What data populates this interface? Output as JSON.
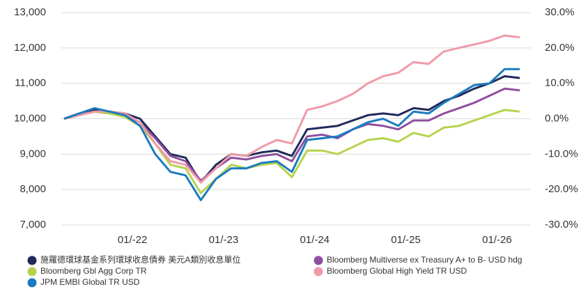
{
  "chart_data": {
    "type": "line",
    "x": [
      "2021-04",
      "2021-06",
      "2021-08",
      "2021-10",
      "2021-12",
      "2022-02",
      "2022-04",
      "2022-06",
      "2022-08",
      "2022-10",
      "2022-12",
      "2023-02",
      "2023-04",
      "2023-06",
      "2023-08",
      "2023-10",
      "2023-12",
      "2024-02",
      "2024-04",
      "2024-06",
      "2024-08",
      "2024-10",
      "2024-12",
      "2025-02",
      "2025-04",
      "2025-06",
      "2025-08",
      "2025-10",
      "2025-12",
      "2026-02",
      "2026-04"
    ],
    "xlim": [
      "2021-04",
      "2026-05"
    ],
    "xticks": [
      {
        "value": "2022-01",
        "label": "01/-22"
      },
      {
        "value": "2023-01",
        "label": "01/-23"
      },
      {
        "value": "2024-01",
        "label": "01/-24"
      },
      {
        "value": "2025-01",
        "label": "01/-25"
      },
      {
        "value": "2026-01",
        "label": "01/-26"
      }
    ],
    "ylim": [
      7000,
      13000
    ],
    "yticks": [
      {
        "value": 7000,
        "label": "7,000"
      },
      {
        "value": 8000,
        "label": "8,000"
      },
      {
        "value": 9000,
        "label": "9,000"
      },
      {
        "value": 10000,
        "label": "10,000"
      },
      {
        "value": 11000,
        "label": "11,000"
      },
      {
        "value": 12000,
        "label": "12,000"
      },
      {
        "value": 13000,
        "label": "13,000"
      }
    ],
    "y2lim": [
      -30,
      30
    ],
    "y2ticks": [
      {
        "value": 30,
        "label": "30.0%"
      },
      {
        "value": 20,
        "label": "20.0%"
      },
      {
        "value": 10,
        "label": "10.0%"
      },
      {
        "value": 0,
        "label": "0.0%"
      },
      {
        "value": -10,
        "label": "-10.0%"
      },
      {
        "value": -20,
        "label": "-20.0%"
      },
      {
        "value": -30,
        "label": "-30.0%"
      }
    ],
    "grid": true,
    "series": [
      {
        "name": "施羅德環球基金系列環球收息債券 美元A類別收息單位",
        "color": "#1f2a5a",
        "values": [
          10000,
          10150,
          10250,
          10200,
          10150,
          10000,
          9500,
          9000,
          8900,
          8200,
          8700,
          9000,
          8950,
          9050,
          9100,
          8950,
          9700,
          9750,
          9800,
          9950,
          10100,
          10150,
          10100,
          10300,
          10250,
          10500,
          10650,
          10850,
          11000,
          11200,
          11150
        ]
      },
      {
        "name": "Bloomberg Multiverse ex Treasury A+ to B- USD hdg",
        "color": "#8e4f9e",
        "values": [
          10000,
          10100,
          10200,
          10150,
          10100,
          9900,
          9450,
          8950,
          8800,
          8250,
          8600,
          8900,
          8850,
          8950,
          9000,
          8800,
          9500,
          9550,
          9450,
          9700,
          9850,
          9800,
          9700,
          9950,
          9950,
          10150,
          10300,
          10450,
          10650,
          10850,
          10800
        ]
      },
      {
        "name": "Bloomberg Gbl Agg Corp TR",
        "color": "#b5d34d",
        "values": [
          10000,
          10100,
          10200,
          10150,
          10050,
          9800,
          9300,
          8700,
          8600,
          7900,
          8300,
          8700,
          8600,
          8700,
          8750,
          8350,
          9100,
          9100,
          9000,
          9200,
          9400,
          9450,
          9350,
          9600,
          9500,
          9750,
          9800,
          9950,
          10100,
          10250,
          10200
        ]
      },
      {
        "name": "Bloomberg Global High Yield TR USD",
        "color": "#f09aa8",
        "values": [
          10000,
          10100,
          10200,
          10200,
          10150,
          9900,
          9300,
          8800,
          8700,
          8200,
          8600,
          9000,
          8950,
          9200,
          9400,
          9300,
          10250,
          10350,
          10500,
          10700,
          11000,
          11200,
          11300,
          11600,
          11550,
          11900,
          12000,
          12100,
          12200,
          12350,
          12300
        ]
      },
      {
        "name": "JPM EMBI Global TR USD",
        "color": "#1a7bbf",
        "values": [
          10000,
          10150,
          10300,
          10200,
          10100,
          9800,
          9000,
          8500,
          8400,
          7700,
          8300,
          8600,
          8600,
          8750,
          8800,
          8500,
          9400,
          9450,
          9500,
          9700,
          9900,
          10000,
          9800,
          10200,
          10150,
          10450,
          10700,
          10950,
          11000,
          11400,
          11400
        ]
      }
    ]
  }
}
